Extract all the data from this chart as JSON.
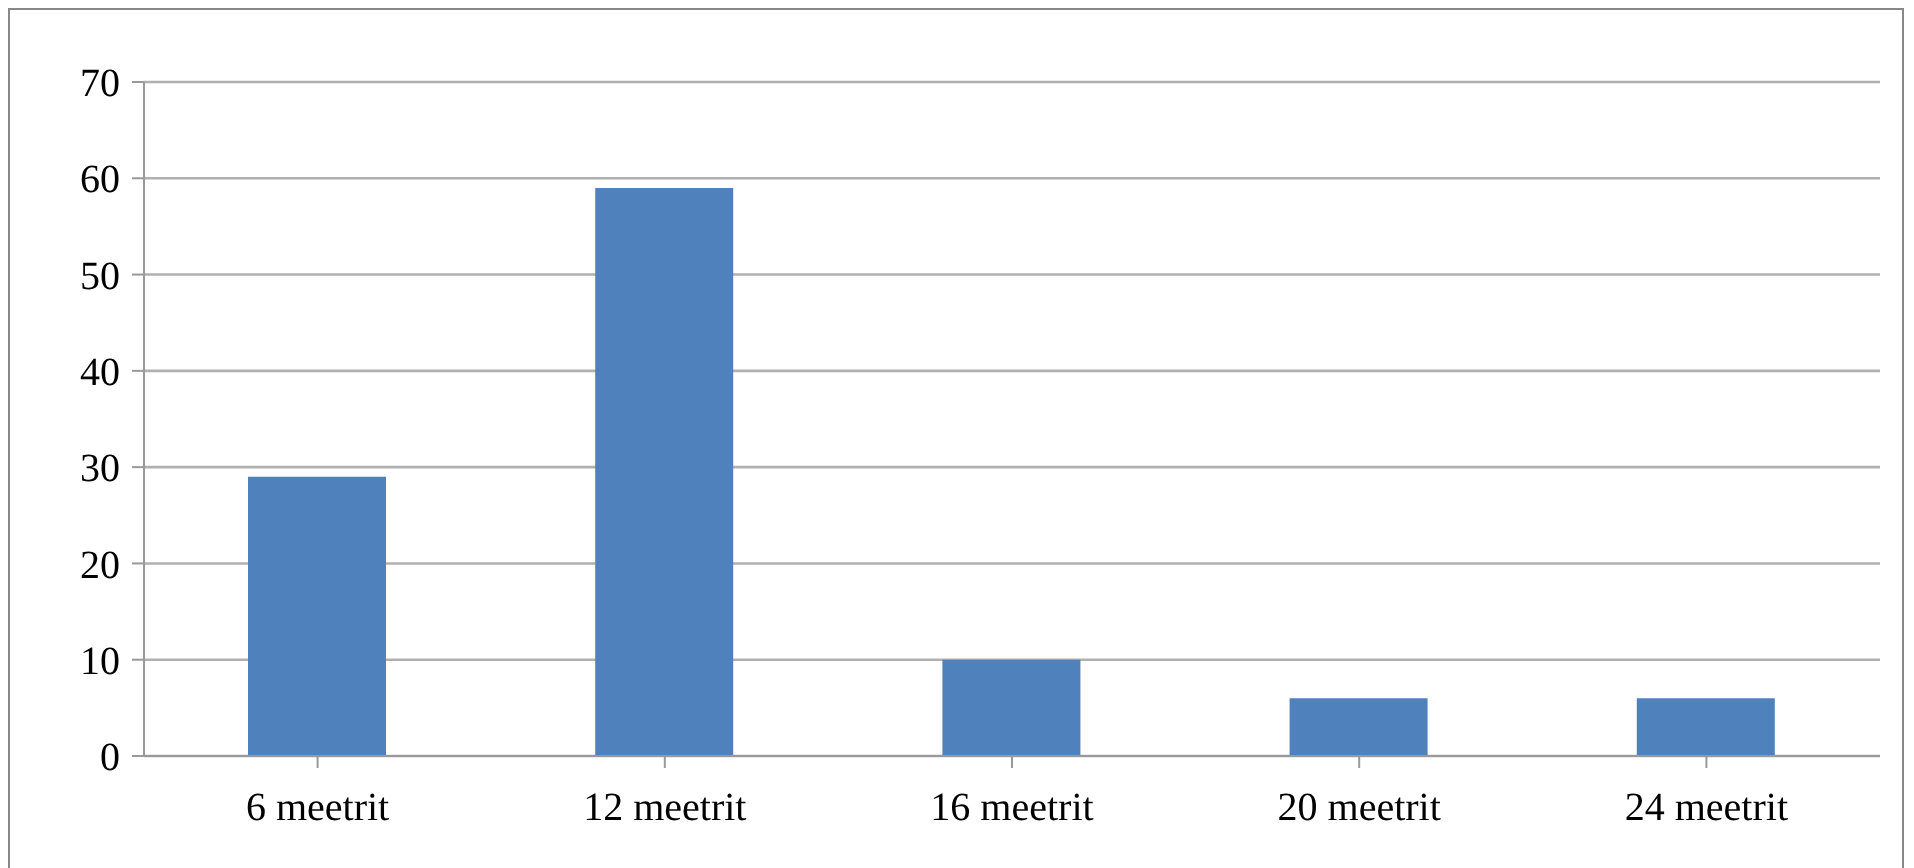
{
  "chart_data": {
    "type": "bar",
    "categories": [
      "6 meetrit",
      "12 meetrit",
      "16 meetrit",
      "20 meetrit",
      "24 meetrit"
    ],
    "values": [
      29,
      59,
      10,
      6,
      6
    ],
    "color": "#4f81bd",
    "ylim": [
      0,
      70
    ],
    "yticks": [
      0,
      10,
      20,
      30,
      40,
      50,
      60,
      70
    ],
    "grid": "y",
    "legend": false
  }
}
